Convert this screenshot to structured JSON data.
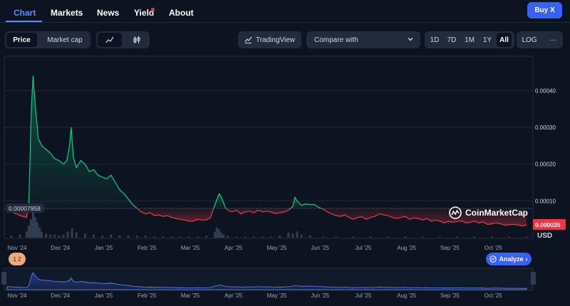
{
  "nav": {
    "tabs": [
      "Chart",
      "Markets",
      "News",
      "Yield",
      "About"
    ],
    "buy_label": "Buy X"
  },
  "toolbar": {
    "price_label": "Price",
    "marketcap_label": "Market cap",
    "tradingview_label": "TradingView",
    "compare_label": "Compare with",
    "ranges": [
      "1D",
      "7D",
      "1M",
      "1Y",
      "All"
    ],
    "active_range": "All",
    "log_label": "LOG",
    "more_label": "···"
  },
  "chart_data": {
    "type": "line",
    "currency": "USD",
    "reference_value": 7.958e-05,
    "reference_label": "0.00007958",
    "current_value": 3.5e-05,
    "current_label": "0.000035",
    "ylim": [
      0,
      0.00048
    ],
    "yticks": [
      0.0001,
      0.0002,
      0.0003,
      0.0004
    ],
    "ytick_labels": [
      "0.00010",
      "0.00020",
      "0.00030",
      "0.00040"
    ],
    "xtick_labels": [
      "Nov '24",
      "Dec '24",
      "Jan '25",
      "Feb '25",
      "Mar '25",
      "Apr '25",
      "May '25",
      "Jun '25",
      "Jul '25",
      "Aug '25",
      "Sep '25",
      "Oct '25"
    ],
    "xlim": [
      0,
      12.1
    ],
    "series": [
      {
        "x": [
          0,
          0.15,
          0.3,
          0.45,
          0.5,
          0.53,
          0.56,
          0.6,
          0.65,
          0.72,
          0.8,
          0.9,
          1.0,
          1.1,
          1.2,
          1.3,
          1.38,
          1.44,
          1.48,
          1.53,
          1.6,
          1.7,
          1.8,
          1.9,
          2.0,
          2.1,
          2.2,
          2.3,
          2.4,
          2.5,
          2.6,
          2.7,
          2.8,
          2.9,
          3.0,
          3.1,
          3.2,
          3.3,
          3.4,
          3.5,
          3.6,
          3.7,
          3.8,
          3.9,
          4.0,
          4.1,
          4.2,
          4.3,
          4.4,
          4.5,
          4.6,
          4.7,
          4.8,
          4.9,
          4.95,
          5.0,
          5.05,
          5.1,
          5.2,
          5.3,
          5.4,
          5.5,
          5.6,
          5.7,
          5.8,
          5.9,
          6.0,
          6.1,
          6.2,
          6.3,
          6.4,
          6.5,
          6.6,
          6.65,
          6.7,
          6.8,
          6.9,
          7.0,
          7.1,
          7.2,
          7.3,
          7.4,
          7.5,
          7.6,
          7.7,
          7.8,
          7.9,
          8.0,
          8.1,
          8.2,
          8.3,
          8.4,
          8.5,
          8.6,
          8.7,
          8.8,
          8.9,
          9.0,
          9.1,
          9.2,
          9.3,
          9.4,
          9.5,
          9.6,
          9.7,
          9.8,
          9.9,
          10.0,
          10.1,
          10.2,
          10.3,
          10.4,
          10.5,
          10.6,
          10.7,
          10.8,
          10.9,
          11.0,
          11.1,
          11.2,
          11.3,
          11.4,
          11.5,
          11.6,
          11.7,
          11.8,
          11.9,
          12.0
        ],
        "y": [
          7.5e-05,
          6.8e-05,
          6e-05,
          5.5e-05,
          9e-05,
          0.00022,
          0.00035,
          0.00044,
          0.00036,
          0.00027,
          0.00025,
          0.00024,
          0.00023,
          0.000215,
          0.00021,
          0.0002,
          0.00021,
          0.00025,
          0.0003,
          0.00022,
          0.00019,
          0.00021,
          0.0002,
          0.00018,
          0.000185,
          0.00017,
          0.000165,
          0.00016,
          0.00017,
          0.00015,
          0.00013,
          0.00012,
          0.000105,
          9e-05,
          8e-05,
          7e-05,
          6.5e-05,
          6.8e-05,
          6e-05,
          6.2e-05,
          5.8e-05,
          6e-05,
          5.5e-05,
          5.2e-05,
          5e-05,
          4.8e-05,
          4.5e-05,
          4.5e-05,
          5e-05,
          4.8e-05,
          4.8e-05,
          5.5e-05,
          9e-05,
          0.00012,
          0.00011,
          9.5e-05,
          8e-05,
          7.5e-05,
          7e-05,
          7.5e-05,
          6.5e-05,
          7e-05,
          7.2e-05,
          6.8e-05,
          7.5e-05,
          7e-05,
          7.2e-05,
          7e-05,
          6.5e-05,
          6.8e-05,
          7e-05,
          7.5e-05,
          8.5e-05,
          0.00011,
          0.0001,
          8.8e-05,
          9.2e-05,
          9e-05,
          9e-05,
          8.2e-05,
          7.8e-05,
          7e-05,
          6.5e-05,
          6e-05,
          5.8e-05,
          6.2e-05,
          5.5e-05,
          5e-05,
          5.5e-05,
          5.7e-05,
          5e-05,
          5.5e-05,
          5.8e-05,
          6.5e-05,
          6.2e-05,
          6e-05,
          5.5e-05,
          5.2e-05,
          5.5e-05,
          5.8e-05,
          5e-05,
          5.4e-05,
          5.2e-05,
          4.8e-05,
          5.2e-05,
          4.5e-05,
          4.8e-05,
          4.5e-05,
          4e-05,
          4.5e-05,
          4.2e-05,
          4.4e-05,
          4.6e-05,
          4e-05,
          4.2e-05,
          4.5e-05,
          4e-05,
          4.3e-05,
          3.6e-05,
          3.8e-05,
          4e-05,
          3.8e-05,
          3.4e-05,
          3.5e-05,
          3.6e-05,
          3.5e-05,
          3.2e-05,
          3.5e-05
        ]
      }
    ],
    "volume": {
      "x": [
        0.1,
        0.3,
        0.45,
        0.5,
        0.55,
        0.6,
        0.65,
        0.7,
        0.75,
        0.8,
        0.9,
        1.0,
        1.1,
        1.2,
        1.3,
        1.4,
        1.5,
        1.6,
        1.8,
        2.0,
        2.2,
        2.4,
        2.6,
        2.8,
        3.0,
        3.2,
        3.4,
        3.6,
        3.8,
        4.0,
        4.2,
        4.4,
        4.6,
        4.8,
        4.85,
        4.9,
        4.95,
        5.0,
        5.1,
        5.3,
        5.5,
        5.7,
        5.9,
        6.1,
        6.3,
        6.5,
        6.6,
        6.7,
        6.8,
        7.0,
        7.3,
        7.6,
        8.0,
        8.4,
        8.8,
        9.2,
        9.6,
        10.0,
        10.4,
        10.8,
        11.2,
        11.6,
        12.0
      ],
      "y": [
        2,
        3,
        6,
        12,
        18,
        25,
        20,
        15,
        10,
        6,
        4,
        3,
        3,
        2,
        3,
        6,
        9,
        5,
        4,
        3,
        2,
        3,
        2,
        2,
        2,
        2,
        1,
        1,
        1,
        1,
        1,
        1,
        2,
        6,
        10,
        8,
        5,
        3,
        2,
        1,
        1,
        1,
        1,
        1,
        2,
        5,
        4,
        6,
        3,
        2,
        1,
        1,
        1,
        1,
        1,
        1,
        1,
        1,
        1,
        1,
        1,
        1,
        1
      ]
    }
  },
  "overlay": {
    "watermark_text": "CoinMarketCap",
    "analyze_label": "Analyze",
    "usd_label": "USD",
    "page_badge": "1 2"
  },
  "colors": {
    "up": "#16c784",
    "down": "#ea3943",
    "accent": "#3861fb",
    "background": "#0d1421"
  }
}
